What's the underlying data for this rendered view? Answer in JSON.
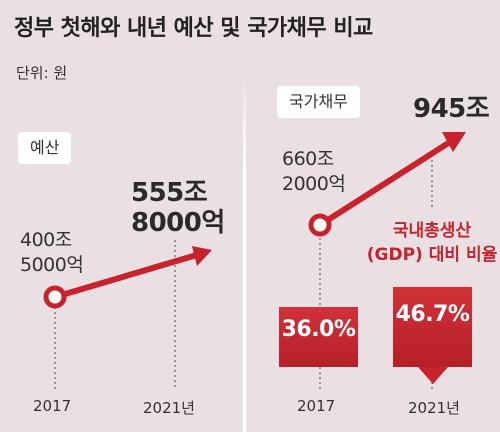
{
  "header": {
    "title": "정부 첫해와 내년 예산 및 국가채무 비교",
    "unit": "단위: 원"
  },
  "colors": {
    "accent": "#c8232c",
    "background": "#eadfe3"
  },
  "chart_data": [
    {
      "type": "line",
      "title": "예산",
      "categories": [
        "2017",
        "2021년"
      ],
      "values": [
        400.5,
        555.8
      ],
      "data_labels": [
        "400조\n5000억",
        "555조\n8000억"
      ]
    },
    {
      "type": "line",
      "title": "국가채무",
      "categories": [
        "2017",
        "2021년"
      ],
      "values": [
        660.2,
        945
      ],
      "data_labels": [
        "660조\n2000억",
        "945조"
      ],
      "gdp_ratio": {
        "label": "국내총생산\n(GDP) 대비 비율",
        "categories": [
          "2017",
          "2021년"
        ],
        "values": [
          36.0,
          46.7
        ],
        "value_labels": [
          "36.0%",
          "46.7%"
        ]
      }
    }
  ]
}
